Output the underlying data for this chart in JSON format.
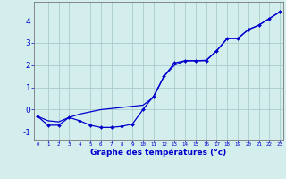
{
  "xlabel": "Graphe des températures (°c)",
  "bg_color": "#d4eeee",
  "line_color": "#0000cc",
  "grid_color": "#aacccc",
  "x_ticks": [
    0,
    1,
    2,
    3,
    4,
    5,
    6,
    7,
    8,
    9,
    10,
    11,
    12,
    13,
    14,
    15,
    16,
    17,
    18,
    19,
    20,
    21,
    22,
    23
  ],
  "y_ticks": [
    -1,
    0,
    1,
    2,
    3,
    4
  ],
  "ylim": [
    -1.35,
    4.85
  ],
  "xlim": [
    -0.3,
    23.3
  ],
  "marker_x": [
    0,
    1,
    2,
    3,
    4,
    5,
    6,
    7,
    8,
    9,
    10,
    11,
    12,
    13,
    14,
    15,
    16,
    17,
    18,
    19,
    20,
    21,
    22,
    23
  ],
  "marker_y": [
    -0.3,
    -0.7,
    -0.7,
    -0.35,
    -0.5,
    -0.7,
    -0.8,
    -0.8,
    -0.75,
    -0.65,
    0.0,
    0.6,
    1.5,
    2.1,
    2.2,
    2.2,
    2.2,
    2.65,
    3.2,
    3.2,
    3.6,
    3.8,
    4.1,
    4.4
  ],
  "smooth_x": [
    0,
    1,
    2,
    3,
    4,
    5,
    6,
    7,
    8,
    9,
    10,
    11,
    12,
    13,
    14,
    15,
    16,
    17,
    18,
    19,
    20,
    21,
    22,
    23
  ],
  "smooth_y": [
    -0.3,
    -0.5,
    -0.55,
    -0.35,
    -0.2,
    -0.1,
    0.0,
    0.05,
    0.1,
    0.15,
    0.2,
    0.55,
    1.5,
    2.0,
    2.2,
    2.2,
    2.22,
    2.65,
    3.2,
    3.2,
    3.6,
    3.8,
    4.1,
    4.4
  ]
}
